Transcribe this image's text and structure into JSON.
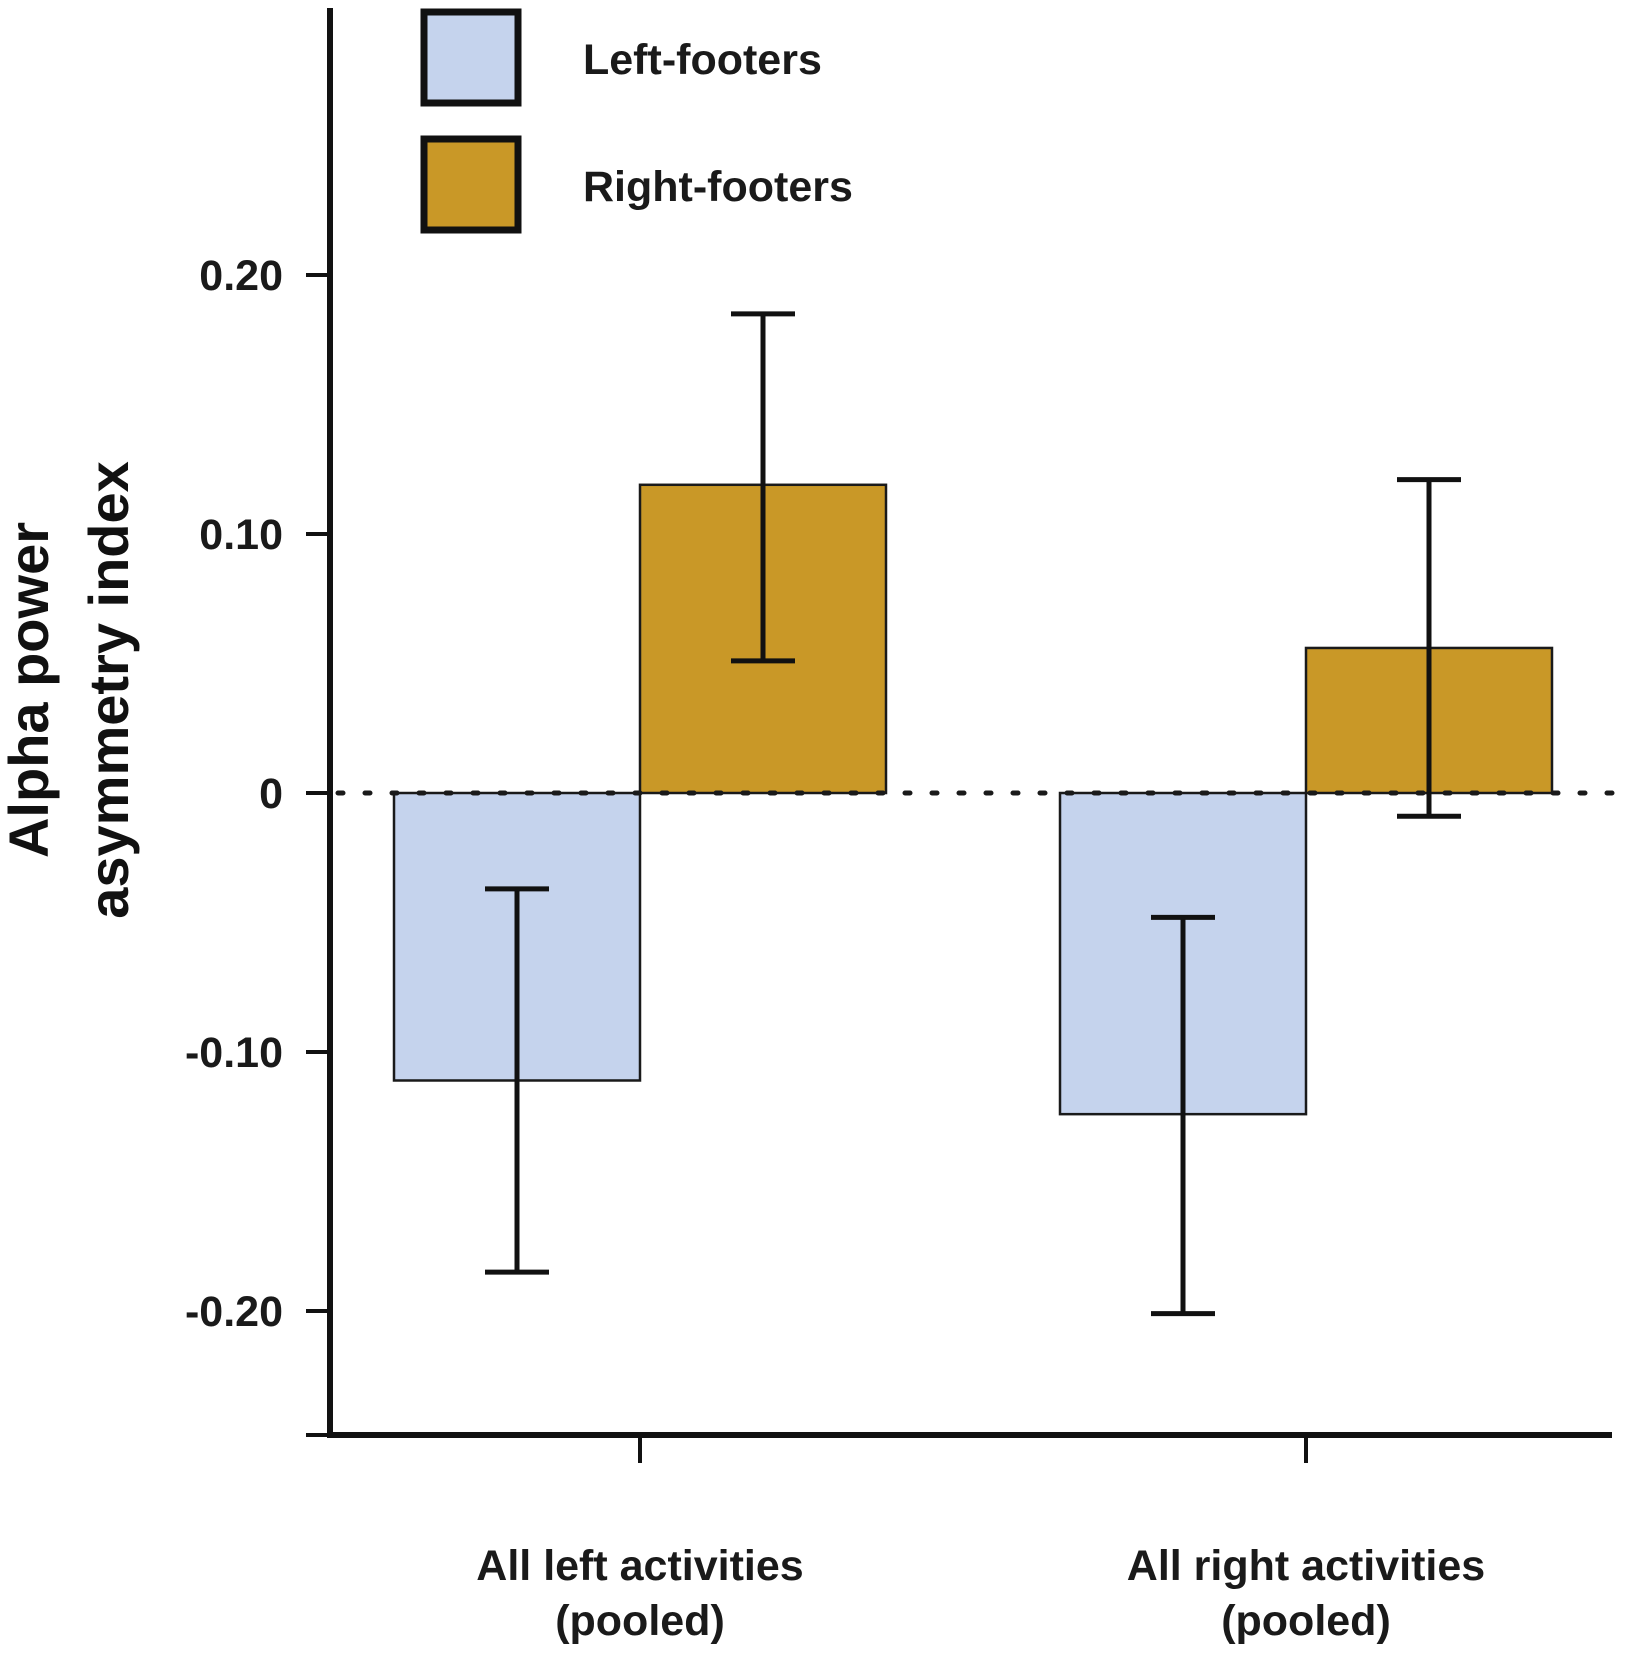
{
  "chart_data": {
    "type": "bar",
    "title": "",
    "xlabel": "",
    "ylabel_lines": [
      "Alpha power",
      "asymmetry index"
    ],
    "ylim": [
      -0.25,
      0.305
    ],
    "yticks": [
      -0.2,
      -0.1,
      0,
      0.1,
      0.2
    ],
    "ytick_labels": [
      "-0.20",
      "-0.10",
      "0",
      "0.10",
      "0.20"
    ],
    "categories": [
      {
        "line1": "All left activities",
        "line2": "(pooled)"
      },
      {
        "line1": "All right activities",
        "line2": "(pooled)"
      }
    ],
    "series": [
      {
        "name": "Left-footers",
        "color": "#c5d3ed",
        "values": [
          -0.111,
          -0.124
        ],
        "error_low": [
          -0.185,
          -0.201
        ],
        "error_high": [
          -0.037,
          -0.048
        ]
      },
      {
        "name": "Right-footers",
        "color": "#c99827",
        "values": [
          0.119,
          0.056
        ],
        "error_low": [
          0.051,
          -0.009
        ],
        "error_high": [
          0.185,
          0.121
        ]
      }
    ],
    "zero_line": "dotted",
    "legend_position": "top-left",
    "grid": false
  }
}
